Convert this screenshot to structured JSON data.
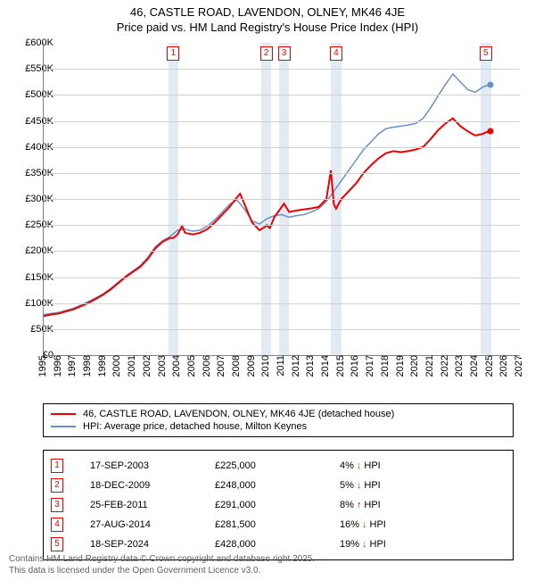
{
  "title": {
    "line1": "46, CASTLE ROAD, LAVENDON, OLNEY, MK46 4JE",
    "line2": "Price paid vs. HM Land Registry's House Price Index (HPI)",
    "fontsize": 13,
    "color": "#000000"
  },
  "chart": {
    "type": "line",
    "background_color": "#ffffff",
    "grid_color": "#d0d0d0",
    "axis_color": "#808080",
    "shade_color": "#e2eaf4",
    "x": {
      "min": 1995,
      "max": 2027,
      "tick_step": 1,
      "label_fontsize": 11
    },
    "y": {
      "min": 0,
      "max": 600000,
      "tick_step": 50000,
      "prefix": "£",
      "suffix": "K",
      "label_fontsize": 11
    },
    "markers": [
      {
        "n": "1",
        "year": 2003.71,
        "price": 225000
      },
      {
        "n": "2",
        "year": 2009.96,
        "price": 248000
      },
      {
        "n": "3",
        "year": 2011.15,
        "price": 291000
      },
      {
        "n": "4",
        "year": 2014.65,
        "price": 281500
      },
      {
        "n": "5",
        "year": 2024.72,
        "price": 428000
      }
    ],
    "marker_border_color": "#ee0000",
    "series": {
      "price": {
        "label": "46, CASTLE ROAD, LAVENDON, OLNEY, MK46 4JE (detached house)",
        "color": "#ee0000",
        "line_width": 2,
        "points": [
          [
            1995.0,
            75000
          ],
          [
            1995.5,
            78000
          ],
          [
            1996.0,
            80000
          ],
          [
            1996.5,
            84000
          ],
          [
            1997.0,
            88000
          ],
          [
            1997.5,
            94000
          ],
          [
            1998.0,
            100000
          ],
          [
            1998.5,
            108000
          ],
          [
            1999.0,
            116000
          ],
          [
            1999.5,
            126000
          ],
          [
            2000.0,
            138000
          ],
          [
            2000.5,
            150000
          ],
          [
            2001.0,
            160000
          ],
          [
            2001.5,
            170000
          ],
          [
            2002.0,
            185000
          ],
          [
            2002.5,
            205000
          ],
          [
            2003.0,
            218000
          ],
          [
            2003.5,
            225000
          ],
          [
            2003.71,
            225000
          ],
          [
            2004.0,
            232000
          ],
          [
            2004.3,
            248000
          ],
          [
            2004.5,
            235000
          ],
          [
            2005.0,
            232000
          ],
          [
            2005.5,
            235000
          ],
          [
            2006.0,
            242000
          ],
          [
            2006.5,
            255000
          ],
          [
            2007.0,
            270000
          ],
          [
            2007.5,
            285000
          ],
          [
            2007.9,
            300000
          ],
          [
            2008.2,
            310000
          ],
          [
            2008.5,
            290000
          ],
          [
            2009.0,
            255000
          ],
          [
            2009.5,
            240000
          ],
          [
            2009.96,
            248000
          ],
          [
            2010.0,
            250000
          ],
          [
            2010.2,
            244000
          ],
          [
            2010.5,
            265000
          ],
          [
            2011.0,
            285000
          ],
          [
            2011.15,
            291000
          ],
          [
            2011.5,
            275000
          ],
          [
            2012.0,
            278000
          ],
          [
            2012.5,
            280000
          ],
          [
            2013.0,
            282000
          ],
          [
            2013.5,
            285000
          ],
          [
            2014.0,
            300000
          ],
          [
            2014.3,
            355000
          ],
          [
            2014.5,
            290000
          ],
          [
            2014.65,
            281500
          ],
          [
            2015.0,
            300000
          ],
          [
            2015.5,
            315000
          ],
          [
            2016.0,
            330000
          ],
          [
            2016.5,
            350000
          ],
          [
            2017.0,
            365000
          ],
          [
            2017.5,
            378000
          ],
          [
            2018.0,
            388000
          ],
          [
            2018.5,
            392000
          ],
          [
            2019.0,
            390000
          ],
          [
            2019.5,
            392000
          ],
          [
            2020.0,
            395000
          ],
          [
            2020.5,
            400000
          ],
          [
            2021.0,
            415000
          ],
          [
            2021.5,
            432000
          ],
          [
            2022.0,
            445000
          ],
          [
            2022.5,
            455000
          ],
          [
            2023.0,
            440000
          ],
          [
            2023.5,
            430000
          ],
          [
            2024.0,
            422000
          ],
          [
            2024.5,
            425000
          ],
          [
            2024.72,
            428000
          ],
          [
            2025.0,
            430000
          ]
        ]
      },
      "hpi": {
        "label": "HPI: Average price, detached house, Milton Keynes",
        "color": "#6a8fc8",
        "line_width": 1.5,
        "points": [
          [
            1995.0,
            78000
          ],
          [
            1995.5,
            80000
          ],
          [
            1996.0,
            82000
          ],
          [
            1996.5,
            86000
          ],
          [
            1997.0,
            90000
          ],
          [
            1997.5,
            96000
          ],
          [
            1998.0,
            103000
          ],
          [
            1998.5,
            110000
          ],
          [
            1999.0,
            118000
          ],
          [
            1999.5,
            128000
          ],
          [
            2000.0,
            140000
          ],
          [
            2000.5,
            152000
          ],
          [
            2001.0,
            162000
          ],
          [
            2001.5,
            172000
          ],
          [
            2002.0,
            188000
          ],
          [
            2002.5,
            208000
          ],
          [
            2003.0,
            220000
          ],
          [
            2003.5,
            228000
          ],
          [
            2004.0,
            240000
          ],
          [
            2004.5,
            242000
          ],
          [
            2005.0,
            238000
          ],
          [
            2005.5,
            240000
          ],
          [
            2006.0,
            248000
          ],
          [
            2006.5,
            260000
          ],
          [
            2007.0,
            275000
          ],
          [
            2007.5,
            290000
          ],
          [
            2008.0,
            298000
          ],
          [
            2008.5,
            280000
          ],
          [
            2009.0,
            258000
          ],
          [
            2009.5,
            252000
          ],
          [
            2010.0,
            262000
          ],
          [
            2010.5,
            268000
          ],
          [
            2011.0,
            270000
          ],
          [
            2011.5,
            265000
          ],
          [
            2012.0,
            268000
          ],
          [
            2012.5,
            270000
          ],
          [
            2013.0,
            275000
          ],
          [
            2013.5,
            282000
          ],
          [
            2014.0,
            295000
          ],
          [
            2014.5,
            315000
          ],
          [
            2015.0,
            335000
          ],
          [
            2015.5,
            355000
          ],
          [
            2016.0,
            375000
          ],
          [
            2016.5,
            395000
          ],
          [
            2017.0,
            410000
          ],
          [
            2017.5,
            425000
          ],
          [
            2018.0,
            435000
          ],
          [
            2018.5,
            438000
          ],
          [
            2019.0,
            440000
          ],
          [
            2019.5,
            442000
          ],
          [
            2020.0,
            445000
          ],
          [
            2020.5,
            455000
          ],
          [
            2021.0,
            475000
          ],
          [
            2021.5,
            498000
          ],
          [
            2022.0,
            520000
          ],
          [
            2022.5,
            540000
          ],
          [
            2023.0,
            525000
          ],
          [
            2023.5,
            510000
          ],
          [
            2024.0,
            505000
          ],
          [
            2024.5,
            515000
          ],
          [
            2025.0,
            520000
          ]
        ]
      }
    }
  },
  "legend": {
    "border_color": "#000000",
    "fontsize": 11
  },
  "transactions": {
    "border_color": "#000000",
    "fontsize": 11,
    "diff_label": "HPI",
    "arrow_down": "↓",
    "arrow_up": "↑",
    "arrow_down_color": "#1a8f1a",
    "arrow_up_color": "#cc0000",
    "rows": [
      {
        "n": "1",
        "date": "17-SEP-2003",
        "price": "£225,000",
        "diff": "4%",
        "dir": "down"
      },
      {
        "n": "2",
        "date": "18-DEC-2009",
        "price": "£248,000",
        "diff": "5%",
        "dir": "down"
      },
      {
        "n": "3",
        "date": "25-FEB-2011",
        "price": "£291,000",
        "diff": "8%",
        "dir": "up"
      },
      {
        "n": "4",
        "date": "27-AUG-2014",
        "price": "£281,500",
        "diff": "16%",
        "dir": "down"
      },
      {
        "n": "5",
        "date": "18-SEP-2024",
        "price": "£428,000",
        "diff": "19%",
        "dir": "down"
      }
    ]
  },
  "footer": {
    "line1": "Contains HM Land Registry data © Crown copyright and database right 2025.",
    "line2": "This data is licensed under the Open Government Licence v3.0.",
    "color": "#606060",
    "fontsize": 10
  }
}
